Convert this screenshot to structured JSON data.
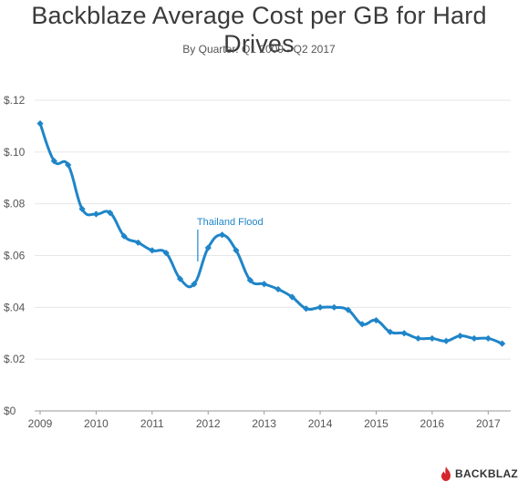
{
  "chart_data": {
    "type": "line",
    "title": "Backblaze Average Cost per GB for Hard Drives",
    "subtitle": "By Quarter: Q1 2009 - Q2 2017",
    "xlabel": "",
    "ylabel": "",
    "x_ticks": [
      "2009",
      "2010",
      "2011",
      "2012",
      "2013",
      "2014",
      "2015",
      "2016",
      "2017"
    ],
    "y_ticks": [
      "$0",
      "$.02",
      "$.04",
      "$.06",
      "$.08",
      "$.10",
      "$.12"
    ],
    "ylim": [
      0,
      0.12
    ],
    "xlim": [
      2009,
      2017.5
    ],
    "grid": true,
    "line_color": "#1f85c9",
    "series": [
      {
        "values": [
          {
            "x": "Q1 2009",
            "y": 0.111
          },
          {
            "x": "Q2 2009",
            "y": 0.0965
          },
          {
            "x": "Q3 2009",
            "y": 0.095
          },
          {
            "x": "Q4 2009",
            "y": 0.078
          },
          {
            "x": "Q1 2010",
            "y": 0.076
          },
          {
            "x": "Q2 2010",
            "y": 0.0765
          },
          {
            "x": "Q3 2010",
            "y": 0.0675
          },
          {
            "x": "Q4 2010",
            "y": 0.065
          },
          {
            "x": "Q1 2011",
            "y": 0.062
          },
          {
            "x": "Q2 2011",
            "y": 0.061
          },
          {
            "x": "Q3 2011",
            "y": 0.051
          },
          {
            "x": "Q4 2011",
            "y": 0.049
          },
          {
            "x": "Q1 2012",
            "y": 0.063
          },
          {
            "x": "Q2 2012",
            "y": 0.068
          },
          {
            "x": "Q3 2012",
            "y": 0.062
          },
          {
            "x": "Q4 2012",
            "y": 0.0505
          },
          {
            "x": "Q1 2013",
            "y": 0.049
          },
          {
            "x": "Q2 2013",
            "y": 0.047
          },
          {
            "x": "Q3 2013",
            "y": 0.044
          },
          {
            "x": "Q4 2013",
            "y": 0.0395
          },
          {
            "x": "Q1 2014",
            "y": 0.04
          },
          {
            "x": "Q2 2014",
            "y": 0.04
          },
          {
            "x": "Q3 2014",
            "y": 0.039
          },
          {
            "x": "Q4 2014",
            "y": 0.0335
          },
          {
            "x": "Q1 2015",
            "y": 0.035
          },
          {
            "x": "Q2 2015",
            "y": 0.0305
          },
          {
            "x": "Q3 2015",
            "y": 0.03
          },
          {
            "x": "Q4 2015",
            "y": 0.028
          },
          {
            "x": "Q1 2016",
            "y": 0.028
          },
          {
            "x": "Q2 2016",
            "y": 0.027
          },
          {
            "x": "Q3 2016",
            "y": 0.029
          },
          {
            "x": "Q4 2016",
            "y": 0.028
          },
          {
            "x": "Q1 2017",
            "y": 0.028
          },
          {
            "x": "Q2 2017",
            "y": 0.026
          }
        ]
      }
    ],
    "annotations": [
      {
        "text": "Thailand Flood",
        "x": "Q4 2011",
        "color": "#1f85c9"
      }
    ]
  },
  "logo": {
    "text": "BACKBLAZE",
    "icon": "flame-icon",
    "icon_color": "#d7262b"
  }
}
